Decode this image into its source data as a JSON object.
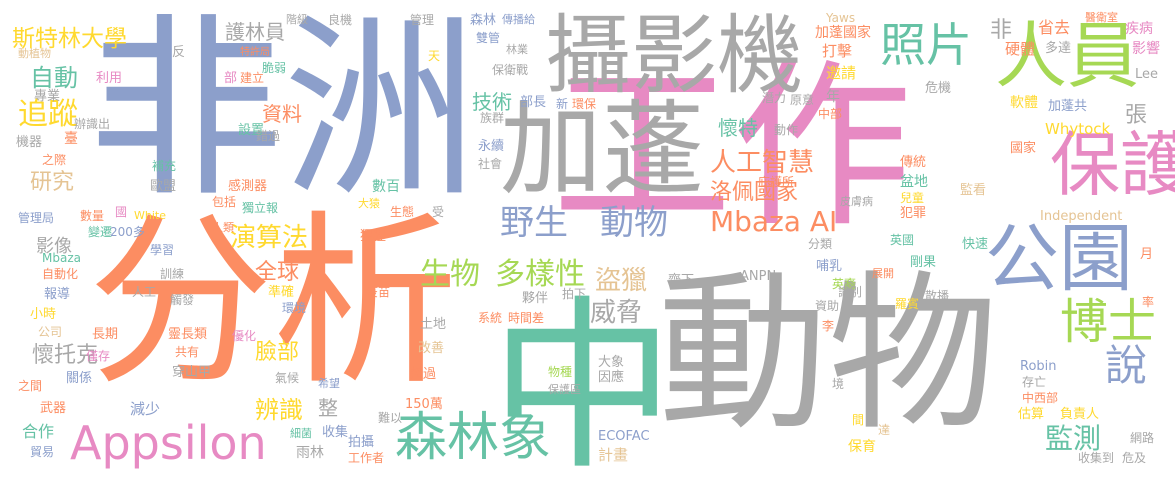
{
  "palette": {
    "gray": "#a8a8a8",
    "blue": "#8c9fcb",
    "orange": "#fc8d62",
    "pink": "#e78ac3",
    "green": "#a6d854",
    "teal": "#66c2a5",
    "yellow": "#ffd92f",
    "tan": "#e5c494"
  },
  "words": [
    {
      "text": "工作",
      "color": "#e78ac3"
    },
    {
      "text": "動物",
      "color": "#a8a8a8"
    },
    {
      "text": "分析",
      "color": "#fc8d62"
    },
    {
      "text": "非洲",
      "color": "#8c9fcb"
    },
    {
      "text": "中",
      "color": "#66c2a5"
    },
    {
      "text": "攝影機",
      "color": "#a8a8a8"
    },
    {
      "text": "加蓬",
      "color": "#a8a8a8"
    },
    {
      "text": "人員",
      "color": "#a6d854"
    },
    {
      "text": "保護",
      "color": "#e78ac3"
    },
    {
      "text": "公園",
      "color": "#8c9fcb"
    },
    {
      "text": "照片",
      "color": "#66c2a5"
    },
    {
      "text": "Appsilon",
      "color": "#e78ac3"
    },
    {
      "text": "森林象",
      "color": "#66c2a5"
    },
    {
      "text": "博士",
      "color": "#a6d854"
    },
    {
      "text": "說",
      "color": "#8c9fcb"
    },
    {
      "text": "野生",
      "color": "#8c9fcb"
    },
    {
      "text": "動物",
      "color": "#8c9fcb"
    },
    {
      "text": "Mbaza AI",
      "color": "#fc8d62"
    },
    {
      "text": "生物",
      "color": "#a6d854"
    },
    {
      "text": "多樣性",
      "color": "#a6d854"
    },
    {
      "text": "人工智慧",
      "color": "#fc8d62"
    },
    {
      "text": "洛佩國家",
      "color": "#fc8d62"
    },
    {
      "text": "追蹤",
      "color": "#ffd92f"
    },
    {
      "text": "自動",
      "color": "#66c2a5"
    },
    {
      "text": "斯特林大學",
      "color": "#ffd92f"
    },
    {
      "text": "演算法",
      "color": "#ffd92f"
    },
    {
      "text": "盜獵",
      "color": "#e5c494"
    },
    {
      "text": "威脅",
      "color": "#a8a8a8"
    },
    {
      "text": "監測",
      "color": "#66c2a5"
    },
    {
      "text": "懷托克",
      "color": "#a8a8a8"
    },
    {
      "text": "辨識",
      "color": "#ffd92f"
    },
    {
      "text": "臉部",
      "color": "#ffd92f"
    },
    {
      "text": "全球",
      "color": "#fc8d62"
    },
    {
      "text": "研究",
      "color": "#e5c494"
    },
    {
      "text": "影像",
      "color": "#a8a8a8"
    },
    {
      "text": "技術",
      "color": "#66c2a5"
    },
    {
      "text": "懷特",
      "color": "#66c2a5"
    },
    {
      "text": "護林員",
      "color": "#a8a8a8"
    },
    {
      "text": "資料",
      "color": "#fc8d62"
    },
    {
      "text": "非",
      "color": "#a8a8a8"
    },
    {
      "text": "張",
      "color": "#a8a8a8"
    },
    {
      "text": "加蓬國家",
      "color": "#fc8d62"
    },
    {
      "text": "省去",
      "color": "#fc8d62"
    },
    {
      "text": "醫衛室",
      "color": "#fc8d62"
    },
    {
      "text": "疾病",
      "color": "#e78ac3"
    },
    {
      "text": "影響",
      "color": "#e78ac3"
    },
    {
      "text": "硬體",
      "color": "#fc8d62"
    },
    {
      "text": "邀請",
      "color": "#ffd92f"
    },
    {
      "text": "打擊",
      "color": "#fc8d62"
    },
    {
      "text": "Yaws",
      "color": "#e5c494"
    },
    {
      "text": "多達",
      "color": "#a8a8a8"
    },
    {
      "text": "Lee",
      "color": "#a8a8a8"
    },
    {
      "text": "危機",
      "color": "#a8a8a8"
    },
    {
      "text": "軟體",
      "color": "#ffd92f"
    },
    {
      "text": "加蓬共",
      "color": "#8c9fcb"
    },
    {
      "text": "Whytock",
      "color": "#ffd92f"
    },
    {
      "text": "國家",
      "color": "#fc8d62"
    },
    {
      "text": "傳統",
      "color": "#fc8d62"
    },
    {
      "text": "盆地",
      "color": "#66c2a5"
    },
    {
      "text": "兒童",
      "color": "#ffd92f"
    },
    {
      "text": "監看",
      "color": "#e5c494"
    },
    {
      "text": "犯罪",
      "color": "#fc8d62"
    },
    {
      "text": "皮膚病",
      "color": "#a8a8a8"
    },
    {
      "text": "Independent",
      "color": "#e5c494"
    },
    {
      "text": "分類",
      "color": "#a8a8a8"
    },
    {
      "text": "英國",
      "color": "#66c2a5"
    },
    {
      "text": "快速",
      "color": "#66c2a5"
    },
    {
      "text": "哺乳",
      "color": "#8c9fcb"
    },
    {
      "text": "剛果",
      "color": "#66c2a5"
    },
    {
      "text": "月",
      "color": "#fc8d62"
    },
    {
      "text": "ANPN",
      "color": "#a8a8a8"
    },
    {
      "text": "英裔",
      "color": "#a6d854"
    },
    {
      "text": "展開",
      "color": "#fc8d62"
    },
    {
      "text": "識別",
      "color": "#a8a8a8"
    },
    {
      "text": "散播",
      "color": "#a8a8a8"
    },
    {
      "text": "資助",
      "color": "#a8a8a8"
    },
    {
      "text": "羅賓",
      "color": "#ffd92f"
    },
    {
      "text": "率",
      "color": "#fc8d62"
    },
    {
      "text": "李",
      "color": "#fc8d62"
    },
    {
      "text": "境",
      "color": "#a8a8a8"
    },
    {
      "text": "Robin",
      "color": "#8c9fcb"
    },
    {
      "text": "存亡",
      "color": "#a8a8a8"
    },
    {
      "text": "中西部",
      "color": "#fc8d62"
    },
    {
      "text": "估算",
      "color": "#ffd92f"
    },
    {
      "text": "負責人",
      "color": "#ffd92f"
    },
    {
      "text": "間",
      "color": "#ffd92f"
    },
    {
      "text": "達",
      "color": "#e5c494"
    },
    {
      "text": "網路",
      "color": "#a8a8a8"
    },
    {
      "text": "保育",
      "color": "#ffd92f"
    },
    {
      "text": "收集到",
      "color": "#a8a8a8"
    },
    {
      "text": "危及",
      "color": "#a8a8a8"
    },
    {
      "text": "計畫",
      "color": "#e5c494"
    },
    {
      "text": "ECOFAC",
      "color": "#8c9fcb"
    },
    {
      "text": "大象",
      "color": "#a8a8a8"
    },
    {
      "text": "因應",
      "color": "#a8a8a8"
    },
    {
      "text": "物種",
      "color": "#a6d854"
    },
    {
      "text": "保護區",
      "color": "#a8a8a8"
    },
    {
      "text": "拍下",
      "color": "#a8a8a8"
    },
    {
      "text": "夥伴",
      "color": "#a8a8a8"
    },
    {
      "text": "齊下",
      "color": "#a8a8a8"
    },
    {
      "text": "系統",
      "color": "#fc8d62"
    },
    {
      "text": "時間差",
      "color": "#fc8d62"
    },
    {
      "text": "土地",
      "color": "#a8a8a8"
    },
    {
      "text": "改善",
      "color": "#e5c494"
    },
    {
      "text": "超過",
      "color": "#fc8d62"
    },
    {
      "text": "150萬",
      "color": "#fc8d62"
    },
    {
      "text": "難以",
      "color": "#a8a8a8"
    },
    {
      "text": "拍攝",
      "color": "#8c9fcb"
    },
    {
      "text": "工作者",
      "color": "#fc8d62"
    },
    {
      "text": "細菌",
      "color": "#66c2a5"
    },
    {
      "text": "收集",
      "color": "#8c9fcb"
    },
    {
      "text": "雨林",
      "color": "#a8a8a8"
    },
    {
      "text": "整",
      "color": "#a8a8a8"
    },
    {
      "text": "希望",
      "color": "#8c9fcb"
    },
    {
      "text": "氣候",
      "color": "#a8a8a8"
    },
    {
      "text": "穿山甲",
      "color": "#a8a8a8"
    },
    {
      "text": "減少",
      "color": "#8c9fcb"
    },
    {
      "text": "合作",
      "color": "#66c2a5"
    },
    {
      "text": "武器",
      "color": "#fc8d62"
    },
    {
      "text": "貿易",
      "color": "#8c9fcb"
    },
    {
      "text": "之間",
      "color": "#fc8d62"
    },
    {
      "text": "關係",
      "color": "#8c9fcb"
    },
    {
      "text": "僅存",
      "color": "#e78ac3"
    },
    {
      "text": "小時",
      "color": "#ffd92f"
    },
    {
      "text": "公司",
      "color": "#e5c494"
    },
    {
      "text": "長期",
      "color": "#fc8d62"
    },
    {
      "text": "靈長類",
      "color": "#fc8d62"
    },
    {
      "text": "共有",
      "color": "#fc8d62"
    },
    {
      "text": "優化",
      "color": "#e78ac3"
    },
    {
      "text": "環境",
      "color": "#8c9fcb"
    },
    {
      "text": "準確",
      "color": "#ffd92f"
    },
    {
      "text": "觸發",
      "color": "#a8a8a8"
    },
    {
      "text": "人工",
      "color": "#a8a8a8"
    },
    {
      "text": "報導",
      "color": "#8c9fcb"
    },
    {
      "text": "自動化",
      "color": "#fc8d62"
    },
    {
      "text": "Mbaza",
      "color": "#66c2a5"
    },
    {
      "text": "訓練",
      "color": "#a8a8a8"
    },
    {
      "text": "學習",
      "color": "#8c9fcb"
    },
    {
      "text": "200多",
      "color": "#8c9fcb"
    },
    {
      "text": "White",
      "color": "#ffd92f"
    },
    {
      "text": "國",
      "color": "#e78ac3"
    },
    {
      "text": "變遷",
      "color": "#66c2a5"
    },
    {
      "text": "數量",
      "color": "#fc8d62"
    },
    {
      "text": "管理局",
      "color": "#8c9fcb"
    },
    {
      "text": "歐盟",
      "color": "#a8a8a8"
    },
    {
      "text": "補充",
      "color": "#66c2a5"
    },
    {
      "text": "之際",
      "color": "#fc8d62"
    },
    {
      "text": "機器",
      "color": "#a8a8a8"
    },
    {
      "text": "臺",
      "color": "#fc8d62"
    },
    {
      "text": "辦識出",
      "color": "#a8a8a8"
    },
    {
      "text": "專業",
      "color": "#a8a8a8"
    },
    {
      "text": "利用",
      "color": "#e78ac3"
    },
    {
      "text": "動植物",
      "color": "#e5c494"
    },
    {
      "text": "反",
      "color": "#a8a8a8"
    },
    {
      "text": "部",
      "color": "#e78ac3"
    },
    {
      "text": "建立",
      "color": "#fc8d62"
    },
    {
      "text": "特許局",
      "color": "#fc8d62"
    },
    {
      "text": "階級",
      "color": "#a8a8a8"
    },
    {
      "text": "脆弱",
      "color": "#66c2a5"
    },
    {
      "text": "良機",
      "color": "#a8a8a8"
    },
    {
      "text": "天",
      "color": "#ffd92f"
    },
    {
      "text": "管理",
      "color": "#a8a8a8"
    },
    {
      "text": "森林",
      "color": "#8c9fcb"
    },
    {
      "text": "傳播給",
      "color": "#8c9fcb"
    },
    {
      "text": "雙管",
      "color": "#8c9fcb"
    },
    {
      "text": "林業",
      "color": "#a8a8a8"
    },
    {
      "text": "保衛戰",
      "color": "#a8a8a8"
    },
    {
      "text": "部長",
      "color": "#8c9fcb"
    },
    {
      "text": "族群",
      "color": "#a8a8a8"
    },
    {
      "text": "新",
      "color": "#8c9fcb"
    },
    {
      "text": "環保",
      "color": "#fc8d62"
    },
    {
      "text": "永續",
      "color": "#8c9fcb"
    },
    {
      "text": "社會",
      "color": "#a8a8a8"
    },
    {
      "text": "數百",
      "color": "#66c2a5"
    },
    {
      "text": "大猿",
      "color": "#ffd92f"
    },
    {
      "text": "生態",
      "color": "#fc8d62"
    },
    {
      "text": "受",
      "color": "#a8a8a8"
    },
    {
      "text": "設置",
      "color": "#66c2a5"
    },
    {
      "text": "錯過",
      "color": "#a8a8a8"
    },
    {
      "text": "感測器",
      "color": "#fc8d62"
    },
    {
      "text": "包括",
      "color": "#fc8d62"
    },
    {
      "text": "獨立報",
      "color": "#66c2a5"
    },
    {
      "text": "人類",
      "color": "#fc8d62"
    },
    {
      "text": "猩猩",
      "color": "#fc8d62"
    },
    {
      "text": "疫苗",
      "color": "#fc8d62"
    },
    {
      "text": "潛力",
      "color": "#a8a8a8"
    },
    {
      "text": "庇護所",
      "color": "#fc8d62"
    },
    {
      "text": "原意",
      "color": "#a8a8a8"
    },
    {
      "text": "中部",
      "color": "#fc8d62"
    },
    {
      "text": "年",
      "color": "#a8a8a8"
    },
    {
      "text": "動作",
      "color": "#a8a8a8"
    }
  ]
}
